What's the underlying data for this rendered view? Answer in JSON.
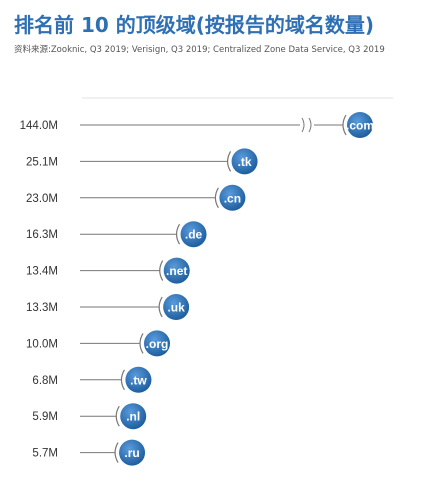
{
  "title": "排名前 10 的顶级域(按报告的域名数量)",
  "source": "资料来源:Zooknic, Q3 2019; Verisign, Q3 2019; Centralized Zone Data Service, Q3 2019",
  "colors": {
    "accent": "#2f6fb3",
    "line": "#777777",
    "bubble_light": "#4d90d2",
    "bubble_dark": "#1f5f9f"
  },
  "chart_data": {
    "type": "bar",
    "axis_break": true,
    "categories": [
      ".com",
      ".tk",
      ".cn",
      ".de",
      ".net",
      ".uk",
      ".org",
      ".tw",
      ".nl",
      ".ru"
    ],
    "value_labels": [
      "144.0M",
      "25.1M",
      "23.0M",
      "16.3M",
      "13.4M",
      "13.3M",
      "10.0M",
      "6.8M",
      "5.9M",
      "5.7M"
    ],
    "values": [
      144.0,
      25.1,
      23.0,
      16.3,
      13.4,
      13.3,
      10.0,
      6.8,
      5.9,
      5.7
    ]
  }
}
